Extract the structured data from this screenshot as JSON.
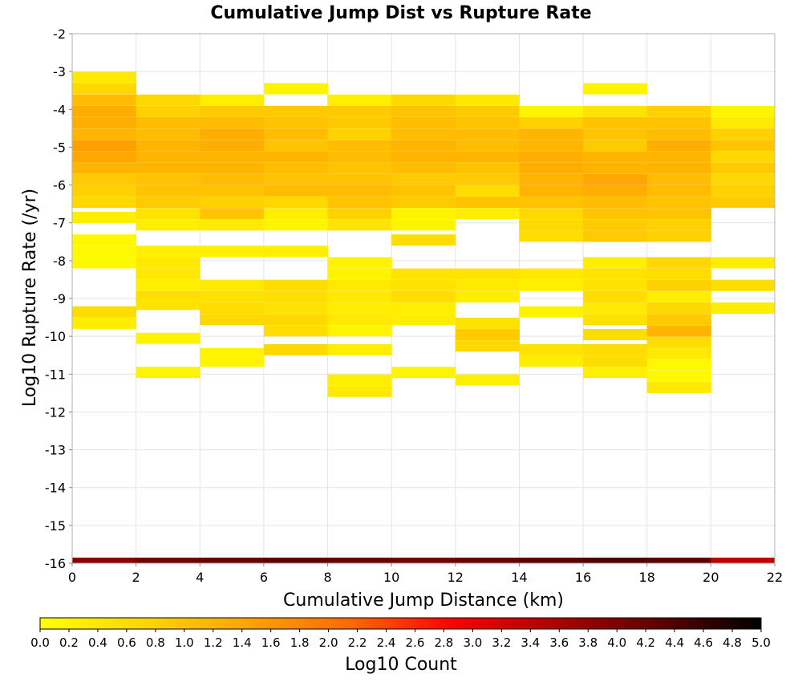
{
  "chart_data": {
    "type": "heatmap",
    "title": "Cumulative Jump Dist vs Rupture Rate",
    "xlabel": "Cumulative Jump Distance (km)",
    "ylabel": "Log10 Rupture Rate (/yr)",
    "colorbar_label": "Log10 Count",
    "xlim": [
      0,
      22
    ],
    "ylim": [
      -16,
      -2
    ],
    "x_ticks": [
      "0",
      "2",
      "4",
      "6",
      "8",
      "10",
      "12",
      "14",
      "16",
      "18",
      "20",
      "22"
    ],
    "y_ticks": [
      "-2",
      "-3",
      "-4",
      "-5",
      "-6",
      "-7",
      "-8",
      "-9",
      "-10",
      "-11",
      "-12",
      "-13",
      "-14",
      "-15",
      "-16"
    ],
    "colorbar_range": [
      0,
      5
    ],
    "colorbar_ticks": [
      "0.0",
      "0.2",
      "0.4",
      "0.6",
      "0.8",
      "1.0",
      "1.2",
      "1.4",
      "1.6",
      "1.8",
      "2.0",
      "2.2",
      "2.4",
      "2.6",
      "2.8",
      "3.0",
      "3.2",
      "3.4",
      "3.6",
      "3.8",
      "4.0",
      "4.2",
      "4.4",
      "4.6",
      "4.8",
      "5.0"
    ],
    "colormap": [
      "#ffff00",
      "#ffd700",
      "#ffa500",
      "#ff6a00",
      "#ff0000",
      "#b00000",
      "#600000",
      "#000000"
    ],
    "x_bin_width": 2,
    "y_bin_height": 0.286,
    "note_cells": "Each cell: [x_start_km, y_log10_rate_bin_center, log10_count]",
    "cells": [
      [
        0,
        -3.15,
        0.4
      ],
      [
        0,
        -3.45,
        0.7
      ],
      [
        0,
        -3.75,
        1.1
      ],
      [
        0,
        -4.05,
        1.3
      ],
      [
        0,
        -4.35,
        1.3
      ],
      [
        0,
        -4.65,
        1.2
      ],
      [
        0,
        -4.95,
        1.5
      ],
      [
        0,
        -5.25,
        1.4
      ],
      [
        0,
        -5.55,
        1.2
      ],
      [
        0,
        -5.85,
        0.9
      ],
      [
        0,
        -6.15,
        0.8
      ],
      [
        0,
        -6.45,
        0.7
      ],
      [
        0,
        -6.85,
        0.3
      ],
      [
        0,
        -7.45,
        0.1
      ],
      [
        0,
        -7.75,
        0.1
      ],
      [
        0,
        -8.05,
        0.1
      ],
      [
        0,
        -9.35,
        0.6
      ],
      [
        0,
        -9.65,
        0.3
      ],
      [
        2,
        -3.75,
        0.7
      ],
      [
        2,
        -4.05,
        0.8
      ],
      [
        2,
        -4.35,
        1.1
      ],
      [
        2,
        -4.65,
        1.1
      ],
      [
        2,
        -4.95,
        1.2
      ],
      [
        2,
        -5.25,
        1.2
      ],
      [
        2,
        -5.55,
        1.2
      ],
      [
        2,
        -5.85,
        1.0
      ],
      [
        2,
        -6.15,
        1.0
      ],
      [
        2,
        -6.45,
        0.9
      ],
      [
        2,
        -6.75,
        0.5
      ],
      [
        2,
        -7.05,
        0.3
      ],
      [
        2,
        -7.75,
        0.3
      ],
      [
        2,
        -8.05,
        0.4
      ],
      [
        2,
        -8.35,
        0.4
      ],
      [
        2,
        -8.65,
        0.3
      ],
      [
        2,
        -8.95,
        0.6
      ],
      [
        2,
        -9.15,
        0.5
      ],
      [
        2,
        -10.05,
        0.2
      ],
      [
        2,
        -10.95,
        0.2
      ],
      [
        4,
        -3.75,
        0.3
      ],
      [
        4,
        -4.05,
        0.9
      ],
      [
        4,
        -4.35,
        1.1
      ],
      [
        4,
        -4.65,
        1.3
      ],
      [
        4,
        -4.95,
        1.3
      ],
      [
        4,
        -5.25,
        1.2
      ],
      [
        4,
        -5.55,
        1.2
      ],
      [
        4,
        -5.85,
        1.1
      ],
      [
        4,
        -6.15,
        1.0
      ],
      [
        4,
        -6.45,
        0.8
      ],
      [
        4,
        -6.75,
        1.0
      ],
      [
        4,
        -7.05,
        0.4
      ],
      [
        4,
        -7.75,
        0.3
      ],
      [
        4,
        -8.65,
        0.4
      ],
      [
        4,
        -8.95,
        0.5
      ],
      [
        4,
        -9.25,
        0.6
      ],
      [
        4,
        -9.55,
        0.7
      ],
      [
        4,
        -10.45,
        0.2
      ],
      [
        4,
        -10.65,
        0.2
      ],
      [
        6,
        -3.45,
        0.2
      ],
      [
        6,
        -4.05,
        0.9
      ],
      [
        6,
        -4.35,
        1.0
      ],
      [
        6,
        -4.65,
        1.1
      ],
      [
        6,
        -4.95,
        1.0
      ],
      [
        6,
        -5.25,
        1.2
      ],
      [
        6,
        -5.55,
        1.1
      ],
      [
        6,
        -5.85,
        1.0
      ],
      [
        6,
        -6.15,
        1.1
      ],
      [
        6,
        -6.45,
        0.7
      ],
      [
        6,
        -6.75,
        0.3
      ],
      [
        6,
        -7.05,
        0.2
      ],
      [
        6,
        -7.75,
        0.3
      ],
      [
        6,
        -8.65,
        0.6
      ],
      [
        6,
        -8.95,
        0.6
      ],
      [
        6,
        -9.25,
        0.5
      ],
      [
        6,
        -9.55,
        0.7
      ],
      [
        6,
        -9.85,
        0.6
      ],
      [
        6,
        -10.35,
        0.7
      ],
      [
        8,
        -3.75,
        0.3
      ],
      [
        8,
        -4.05,
        0.9
      ],
      [
        8,
        -4.35,
        0.9
      ],
      [
        8,
        -4.65,
        0.8
      ],
      [
        8,
        -4.95,
        1.1
      ],
      [
        8,
        -5.25,
        1.1
      ],
      [
        8,
        -5.55,
        1.0
      ],
      [
        8,
        -5.85,
        1.0
      ],
      [
        8,
        -6.15,
        1.1
      ],
      [
        8,
        -6.45,
        1.0
      ],
      [
        8,
        -6.75,
        0.8
      ],
      [
        8,
        -7.05,
        0.5
      ],
      [
        8,
        -8.05,
        0.2
      ],
      [
        8,
        -8.35,
        0.2
      ],
      [
        8,
        -8.65,
        0.4
      ],
      [
        8,
        -8.95,
        0.4
      ],
      [
        8,
        -9.25,
        0.3
      ],
      [
        8,
        -9.55,
        0.4
      ],
      [
        8,
        -9.85,
        0.2
      ],
      [
        8,
        -10.35,
        0.3
      ],
      [
        8,
        -11.15,
        0.3
      ],
      [
        8,
        -11.45,
        0.4
      ],
      [
        10,
        -3.75,
        0.7
      ],
      [
        10,
        -4.05,
        1.0
      ],
      [
        10,
        -4.35,
        1.1
      ],
      [
        10,
        -4.65,
        1.1
      ],
      [
        10,
        -4.95,
        1.2
      ],
      [
        10,
        -5.25,
        1.2
      ],
      [
        10,
        -5.55,
        1.1
      ],
      [
        10,
        -5.85,
        0.9
      ],
      [
        10,
        -6.15,
        1.0
      ],
      [
        10,
        -6.45,
        0.9
      ],
      [
        10,
        -6.75,
        0.2
      ],
      [
        10,
        -7.05,
        0.2
      ],
      [
        10,
        -7.45,
        0.6
      ],
      [
        10,
        -8.35,
        0.5
      ],
      [
        10,
        -8.65,
        0.5
      ],
      [
        10,
        -8.95,
        0.6
      ],
      [
        10,
        -9.25,
        0.3
      ],
      [
        10,
        -9.55,
        0.3
      ],
      [
        10,
        -10.95,
        0.2
      ],
      [
        12,
        -3.75,
        0.4
      ],
      [
        12,
        -4.05,
        0.9
      ],
      [
        12,
        -4.35,
        1.0
      ],
      [
        12,
        -4.65,
        1.1
      ],
      [
        12,
        -4.95,
        1.1
      ],
      [
        12,
        -5.25,
        1.2
      ],
      [
        12,
        -5.55,
        1.0
      ],
      [
        12,
        -5.85,
        0.9
      ],
      [
        12,
        -6.15,
        0.6
      ],
      [
        12,
        -6.45,
        1.0
      ],
      [
        12,
        -6.75,
        0.3
      ],
      [
        12,
        -8.35,
        0.5
      ],
      [
        12,
        -8.65,
        0.4
      ],
      [
        12,
        -8.95,
        0.3
      ],
      [
        12,
        -9.65,
        0.5
      ],
      [
        12,
        -9.95,
        0.9
      ],
      [
        12,
        -10.25,
        0.7
      ],
      [
        12,
        -11.15,
        0.3
      ],
      [
        14,
        -4.05,
        0.2
      ],
      [
        14,
        -4.35,
        0.8
      ],
      [
        14,
        -4.65,
        1.2
      ],
      [
        14,
        -4.95,
        1.2
      ],
      [
        14,
        -5.25,
        1.3
      ],
      [
        14,
        -5.55,
        1.3
      ],
      [
        14,
        -5.85,
        1.2
      ],
      [
        14,
        -6.15,
        1.2
      ],
      [
        14,
        -6.45,
        1.0
      ],
      [
        14,
        -6.75,
        0.7
      ],
      [
        14,
        -7.05,
        0.7
      ],
      [
        14,
        -7.35,
        0.6
      ],
      [
        14,
        -8.35,
        0.4
      ],
      [
        14,
        -8.65,
        0.3
      ],
      [
        14,
        -9.35,
        0.2
      ],
      [
        14,
        -10.35,
        0.5
      ],
      [
        14,
        -10.65,
        0.3
      ],
      [
        16,
        -3.45,
        0.2
      ],
      [
        16,
        -4.05,
        0.5
      ],
      [
        16,
        -4.35,
        1.0
      ],
      [
        16,
        -4.65,
        1.0
      ],
      [
        16,
        -4.95,
        0.9
      ],
      [
        16,
        -5.25,
        1.2
      ],
      [
        16,
        -5.55,
        1.2
      ],
      [
        16,
        -5.85,
        1.4
      ],
      [
        16,
        -6.15,
        1.3
      ],
      [
        16,
        -6.45,
        1.1
      ],
      [
        16,
        -6.75,
        1.0
      ],
      [
        16,
        -7.05,
        0.9
      ],
      [
        16,
        -7.35,
        0.9
      ],
      [
        16,
        -8.05,
        0.3
      ],
      [
        16,
        -8.35,
        0.5
      ],
      [
        16,
        -8.65,
        0.5
      ],
      [
        16,
        -8.95,
        0.6
      ],
      [
        16,
        -9.25,
        0.4
      ],
      [
        16,
        -9.55,
        0.5
      ],
      [
        16,
        -9.95,
        0.6
      ],
      [
        16,
        -10.35,
        0.6
      ],
      [
        16,
        -10.65,
        0.6
      ],
      [
        16,
        -10.95,
        0.3
      ],
      [
        18,
        -4.05,
        0.8
      ],
      [
        18,
        -4.35,
        1.0
      ],
      [
        18,
        -4.65,
        1.1
      ],
      [
        18,
        -4.95,
        1.3
      ],
      [
        18,
        -5.25,
        1.2
      ],
      [
        18,
        -5.55,
        1.2
      ],
      [
        18,
        -5.85,
        1.1
      ],
      [
        18,
        -6.15,
        1.1
      ],
      [
        18,
        -6.45,
        1.0
      ],
      [
        18,
        -6.75,
        1.0
      ],
      [
        18,
        -7.05,
        0.8
      ],
      [
        18,
        -7.35,
        0.8
      ],
      [
        18,
        -8.05,
        0.7
      ],
      [
        18,
        -8.35,
        0.6
      ],
      [
        18,
        -8.65,
        0.8
      ],
      [
        18,
        -8.95,
        0.3
      ],
      [
        18,
        -9.25,
        0.7
      ],
      [
        18,
        -9.55,
        0.9
      ],
      [
        18,
        -9.85,
        1.2
      ],
      [
        18,
        -10.15,
        0.6
      ],
      [
        18,
        -10.45,
        0.4
      ],
      [
        18,
        -10.75,
        0.1
      ],
      [
        18,
        -11.05,
        0.1
      ],
      [
        18,
        -11.35,
        0.4
      ],
      [
        20,
        -4.05,
        0.2
      ],
      [
        20,
        -4.35,
        0.4
      ],
      [
        20,
        -4.65,
        0.8
      ],
      [
        20,
        -4.95,
        1.0
      ],
      [
        20,
        -5.25,
        0.7
      ],
      [
        20,
        -5.55,
        0.9
      ],
      [
        20,
        -5.85,
        0.7
      ],
      [
        20,
        -6.15,
        0.8
      ],
      [
        20,
        -6.45,
        0.9
      ],
      [
        20,
        -8.05,
        0.3
      ],
      [
        20,
        -8.65,
        0.6
      ],
      [
        20,
        -9.25,
        0.3
      ]
    ],
    "bottom_row": {
      "y": -16,
      "values": [
        3.9,
        4.1,
        4.2,
        4.3,
        4.2,
        4.1,
        4.2,
        4.3,
        4.4,
        4.3,
        3.4
      ]
    }
  }
}
